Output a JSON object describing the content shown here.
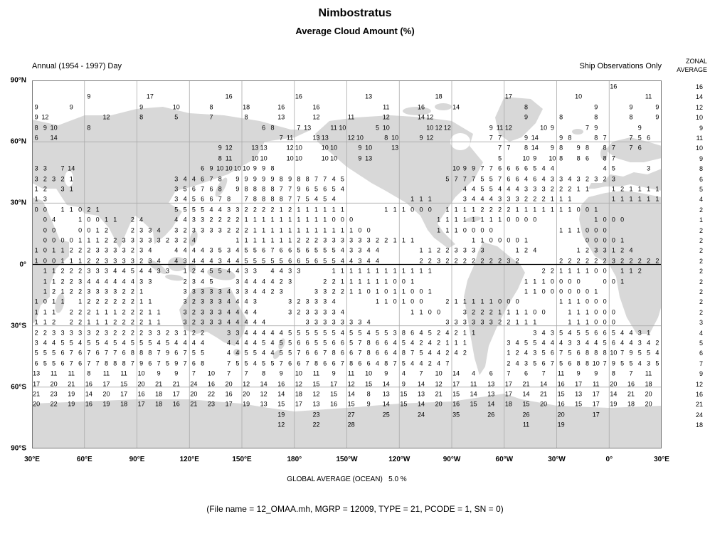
{
  "header": {
    "title": "Nimbostratus",
    "subtitle": "Average Cloud Amount (%)",
    "caption_left": "Annual (1954 - 1997) Day",
    "caption_right": "Ship Observations Only",
    "zonal_line1": "ZONAL",
    "zonal_line2": "AVERAGE"
  },
  "footer": {
    "global_average": "GLOBAL AVERAGE (OCEAN)   5.0 %",
    "file_info": "(File name = 12_OMAA.mh, MGRP = 12009, TYPE = 21, PCODE = 1, SN = 0)"
  },
  "colors": {
    "land": "#d8d8d8",
    "grid": "#aaaaaa",
    "border": "#777777",
    "equator": "#000000",
    "text": "#000000"
  },
  "chart_data": {
    "type": "heatmap",
    "title": "Nimbostratus",
    "subtitle": "Average Cloud Amount (%)",
    "units": "percent cloud amount per 5-degree cell",
    "legend_note": "Ship Observations Only",
    "period": "Annual (1954 - 1997) Day",
    "global_average_ocean": "5.0 %",
    "grid_columns": 72,
    "x_tick_labels": [
      "30°E",
      "60°E",
      "90°E",
      "120°E",
      "150°E",
      "180°",
      "150°W",
      "120°W",
      "90°W",
      "60°W",
      "30°W",
      "0°",
      "30°E"
    ],
    "y_tick_labels": [
      "90°N",
      "60°N",
      "30°N",
      "0°",
      "30°S",
      "60°S",
      "90°S"
    ],
    "zonal_average": [
      16,
      14,
      12,
      10,
      9,
      11,
      10,
      9,
      8,
      6,
      5,
      4,
      2,
      1,
      2,
      2,
      2,
      2,
      2,
      2,
      2,
      2,
      2,
      3,
      4,
      5,
      6,
      7,
      9,
      12,
      16,
      21,
      24,
      18
    ],
    "rows": [
      {
        "seg": [
          [
            66,
            "16"
          ]
        ]
      },
      {
        "seg": [
          [
            6,
            "9"
          ],
          [
            13,
            "17"
          ],
          [
            22,
            "16"
          ],
          [
            30,
            "16"
          ],
          [
            38,
            "13"
          ],
          [
            46,
            "18"
          ],
          [
            54,
            "17"
          ],
          [
            62,
            "10"
          ],
          [
            70,
            "11"
          ]
        ]
      },
      {
        "seg": [
          [
            0,
            "9"
          ],
          [
            4,
            "9"
          ],
          [
            12,
            "9"
          ],
          [
            16,
            "10"
          ],
          [
            20,
            "8"
          ],
          [
            24,
            "18"
          ],
          [
            28,
            "16"
          ],
          [
            32,
            "16"
          ],
          [
            40,
            "11"
          ],
          [
            44,
            "16"
          ],
          [
            48,
            "14"
          ],
          [
            56,
            "8"
          ],
          [
            64,
            "9"
          ],
          [
            68,
            "9"
          ],
          [
            71,
            "9"
          ]
        ]
      },
      {
        "seg": [
          [
            0,
            "9 12"
          ],
          [
            8,
            "12"
          ],
          [
            12,
            "8"
          ],
          [
            16,
            "5"
          ],
          [
            20,
            "7"
          ],
          [
            24,
            "8"
          ],
          [
            28,
            "13"
          ],
          [
            32,
            "12"
          ],
          [
            36,
            "11"
          ],
          [
            40,
            "12"
          ],
          [
            44,
            "14 12"
          ],
          [
            56,
            "9"
          ],
          [
            60,
            "8"
          ],
          [
            64,
            "8"
          ],
          [
            68,
            "8"
          ],
          [
            71,
            "9"
          ]
        ]
      },
      {
        "seg": [
          [
            0,
            "8 9 10"
          ],
          [
            6,
            "8"
          ],
          [
            26,
            "6 8"
          ],
          [
            30,
            "7 13"
          ],
          [
            34,
            "11 10"
          ],
          [
            39,
            "5 10"
          ],
          [
            45,
            "10 12 12"
          ],
          [
            52,
            "9 11 12"
          ],
          [
            58,
            "10 9"
          ],
          [
            63,
            "7 9"
          ],
          [
            69,
            "9"
          ]
        ]
      },
      {
        "seg": [
          [
            0,
            "6"
          ],
          [
            2,
            "14"
          ],
          [
            28,
            "7 11"
          ],
          [
            32,
            "13 13"
          ],
          [
            36,
            "12 10"
          ],
          [
            40,
            "8 10"
          ],
          [
            44,
            "9 12"
          ],
          [
            52,
            "7 7"
          ],
          [
            56,
            "9 14"
          ],
          [
            60,
            "9 8"
          ],
          [
            64,
            "8 7"
          ],
          [
            68,
            "7 5 6"
          ]
        ]
      },
      {
        "seg": [
          [
            21,
            "9 12"
          ],
          [
            25,
            "13 13"
          ],
          [
            29,
            "12 10"
          ],
          [
            33,
            "10 10"
          ],
          [
            37,
            "9 10"
          ],
          [
            41,
            "13"
          ],
          [
            53,
            "7 7"
          ],
          [
            56,
            "8 14"
          ],
          [
            59,
            "9 8"
          ],
          [
            62,
            "9 8"
          ],
          [
            65,
            "8 7"
          ],
          [
            68,
            "7 6"
          ]
        ]
      },
      {
        "seg": [
          [
            21,
            "8 11"
          ],
          [
            25,
            "10 10"
          ],
          [
            29,
            "10 10"
          ],
          [
            33,
            "10 10"
          ],
          [
            37,
            "9 13"
          ],
          [
            53,
            "5"
          ],
          [
            56,
            "10 9"
          ],
          [
            59,
            "10 8"
          ],
          [
            62,
            "8 6"
          ],
          [
            65,
            "8 7"
          ]
        ]
      },
      {
        "seg": [
          [
            0,
            "3 3"
          ],
          [
            3,
            "7 14"
          ],
          [
            19,
            "6 9 10 10 10 10 9 9 8"
          ],
          [
            48,
            "10 9 9 7 7 6 6 6 6 5 4 4"
          ],
          [
            65,
            "4 5"
          ],
          [
            70,
            "3"
          ]
        ]
      },
      {
        "seg": [
          [
            0,
            "3 2 3 2 1"
          ],
          [
            16,
            "3 4 4 6 7 8"
          ],
          [
            23,
            "9 9 9 9 9 8 9 8 8 7 7 4 5"
          ],
          [
            47,
            "5 7 7 7 5 5 7 6 6 4 6 4 3 3 4 3 2 3 2 3"
          ]
        ]
      },
      {
        "seg": [
          [
            0,
            "1 2"
          ],
          [
            3,
            "3 1"
          ],
          [
            16,
            "3 5 6 7 6 8"
          ],
          [
            23,
            "9 8 8 8 8 7 7 9 6 5 6 5 4"
          ],
          [
            49,
            "4 4 5 5 4 4 4 3 3 3 2 2 2 1 1"
          ],
          [
            66,
            "1 2 1 1 1 1"
          ]
        ]
      },
      {
        "seg": [
          [
            0,
            "1 3"
          ],
          [
            16,
            "3 4 5 6 6 7 8"
          ],
          [
            24,
            "7 8 8 8 8 7 7 5 4 5 4"
          ],
          [
            43,
            "1 1 1"
          ],
          [
            49,
            "3 4 4 4 3 3 3 2 2 2 1 1 1"
          ],
          [
            66,
            "1 1 1 1 1 1"
          ]
        ]
      },
      {
        "seg": [
          [
            0,
            "0 0"
          ],
          [
            3,
            "1 1 0 2 1"
          ],
          [
            16,
            "5 5 5 5 4 4 3 3 2 2 2 2 1 2 1 1 1 1 1 1"
          ],
          [
            40,
            "1 1 1 0 0 0"
          ],
          [
            47,
            "1 1 1 1 2 2 2 2 1 1 1 1 1 1 1 0 0 1"
          ]
        ]
      },
      {
        "seg": [
          [
            1,
            "0 4"
          ],
          [
            5,
            "1 0 0 1 1"
          ],
          [
            11,
            "2 4"
          ],
          [
            16,
            "4 4 3 3 2 2 2 2 1 1 1 1 1 1 1 1 1 1 0 0 0"
          ],
          [
            46,
            "1 1 1 1 1 1 1 1 0 0 0 0"
          ],
          [
            64,
            "1 0 0 0"
          ]
        ]
      },
      {
        "seg": [
          [
            1,
            "0 0"
          ],
          [
            5,
            "0 0 1 2"
          ],
          [
            11,
            "2 3 3 4"
          ],
          [
            16,
            "3 2 3 3 3 3 2 2 2 1 1 1 1 1 1 1 1 1 1 1 1 0 0"
          ],
          [
            46,
            "1 1 1 0 0 0 0"
          ],
          [
            60,
            "1 1 1 0 0 0"
          ]
        ]
      },
      {
        "seg": [
          [
            1,
            "0 0 0 0 1 1 1 2 2 3 3 3 3 3 2 3 2 4"
          ],
          [
            23,
            "1 1 1 1 1 1 1 2 2 2 3 3 3 3 3 3 2 2 1 1 1"
          ],
          [
            50,
            "1 1 0 0 0 0 1"
          ],
          [
            63,
            "0 0 0 0 1"
          ]
        ]
      },
      {
        "seg": [
          [
            0,
            "1 0 1 1 2 2 2 3 3 3 3 2 3 4"
          ],
          [
            16,
            "4 4 4 4 3 5 3 4 5 5 6 7 6 6 5 6 5 5 5 4 3 3 4 4"
          ],
          [
            44,
            "1 1 2 2 3 3 3 3"
          ],
          [
            55,
            "1 2 4"
          ],
          [
            62,
            "1 2 3 3 1 2 4"
          ]
        ]
      },
      {
        "seg": [
          [
            0,
            "1 0 0 1 1 1 2 2 3 3 3 3 2 3 4"
          ],
          [
            16,
            "4 3 4 4 4 3 4 4 5 5 5 5 5 6 6 5 6 5 5 4 4 3 4 4"
          ],
          [
            44,
            "2 2 3 2 2 2 2 2 2 2 3 2"
          ],
          [
            60,
            "2 2 2 2 2 2 3 2 2 2 2 2"
          ]
        ]
      },
      {
        "seg": [
          [
            1,
            "1 1 2 2 2 3 3 3 4 4 5 4 4 3 3"
          ],
          [
            17,
            "1 2 4 5 5 4 4 3 3"
          ],
          [
            27,
            "4 4 3 3"
          ],
          [
            34,
            "1 1 1 1 1 1 1 1 1 1 1 1"
          ],
          [
            58,
            "2 2 1 1 1 1 0 0"
          ],
          [
            67,
            "1 1 2"
          ]
        ]
      },
      {
        "seg": [
          [
            1,
            "1 1 2 2 3 4 4 4 4 4 4 3 3"
          ],
          [
            17,
            "2 3 4 5"
          ],
          [
            23,
            "3 4 4 4 4 2 3"
          ],
          [
            33,
            "2 2 1 1 1 1 1 1 0 0 1"
          ],
          [
            56,
            "1 1 1 0 0 0 0"
          ],
          [
            65,
            "0 0 1"
          ]
        ]
      },
      {
        "seg": [
          [
            1,
            "1 2 1 2 2 3 3 3 3 2 2 1"
          ],
          [
            17,
            "3 3 3 3 3 4 3 3 4 4 2 3"
          ],
          [
            32,
            "3 3 2 2 1 1 0 1 0 1 1 0 0 1"
          ],
          [
            56,
            "1 1 0 0 0 0 0 0 1"
          ]
        ]
      },
      {
        "seg": [
          [
            0,
            "1 0 1 1"
          ],
          [
            5,
            "1 2 2 2 2 2 2 1 1"
          ],
          [
            17,
            "3 2 3 3 3 4 4 4 3"
          ],
          [
            29,
            "3 2 3 3 3 4"
          ],
          [
            39,
            "1 1 0 1 0 0"
          ],
          [
            47,
            "2 1 1 1 1 1 0 0 0"
          ],
          [
            60,
            "1 1 1 0 0 0"
          ]
        ]
      },
      {
        "seg": [
          [
            0,
            "1 1 1"
          ],
          [
            4,
            "2 2 2 1 1 1 2 2 2 1 1"
          ],
          [
            17,
            "3 2 3 3 3 4 4 4 4"
          ],
          [
            29,
            "3 2 3 3 3 3 4"
          ],
          [
            43,
            "1 1 0 0"
          ],
          [
            49,
            "3 2 2 2 1 1 1 1 0 0"
          ],
          [
            61,
            "1 1 1 0 0 0"
          ]
        ]
      },
      {
        "seg": [
          [
            0,
            "1 1 2"
          ],
          [
            4,
            "2 2 1 1 1 2 2 2 2 1 1"
          ],
          [
            17,
            "3 2 3 3 3 4 4 4 4 4"
          ],
          [
            31,
            "3 3 3 3 3 3 3 4"
          ],
          [
            47,
            "3 3 3 3 3 3 2 2 1 1 1"
          ],
          [
            61,
            "1 1 1 0 0 0"
          ]
        ]
      },
      {
        "seg": [
          [
            0,
            "2 2 3 3 3 3 3 2 3 2 2 2 2 3 3 2 3 1 2 2"
          ],
          [
            22,
            "3 3 4 4 4 4 4 5 5 5 5 5 5 4 5 5 4 5 5 3 8 6 4 5 2 4 2 1 1"
          ],
          [
            57,
            "3 4 3 5 4 5 5 6 6 5 4 4 3 1"
          ]
        ]
      },
      {
        "seg": [
          [
            0,
            "3 4 4 5 5 4 5 5 4 5 4 5 5 5 4 5 4 4 4 4"
          ],
          [
            22,
            "4 4 4 4 5 4 5 5 6 6 5 5 6 6 5 7 8 6 6 4 5 4 2 4 2 1 1 1"
          ],
          [
            54,
            "3 4 5 5 4 4 4 3 3 4 4 5 6 4 4 3 4 2"
          ]
        ]
      },
      {
        "seg": [
          [
            0,
            "5 5 5 6 7 6 7 6 7 7 6 8 8 8 7 9 6 7 5 5"
          ],
          [
            22,
            "4 4 5 5 4 4 5 5 7 6 6 7 8 6 6 7 8 6 6 4 8 7 5 4 4 2 4 2"
          ],
          [
            54,
            "1 2 4 3 5 6 7 5 6 8 8 8 10 7 9 5 5 4"
          ]
        ]
      },
      {
        "seg": [
          [
            0,
            "6 5 5 6 7 6 7 7 8 8 8 7 9 6 7 5 9 7 6 8"
          ],
          [
            22,
            "7 5 5 4 5 5 7 6 6 7 8 6 6 7 8 6 6 4 8 7 5 4 4 2 4 7"
          ],
          [
            54,
            "2 4 3 5 6 7 5 6 8 8 10 7 9 5 5 4 3 5"
          ]
        ]
      },
      {
        "seg": [
          [
            0,
            "13 11 11 8 11 11 10 9 9 7 10 7 7 8 9 10 11 9 11 10 9 4 7 10 14 4 6 7 6 7 11 9 9 8 7 11",
            2
          ]
        ]
      },
      {
        "seg": [
          [
            0,
            "17 20 21 16 17 15 20 21 21 24 16 20 12 14 16 12 15 17 12 15 14 9 14 12 17 11 13 17 21 14 16 17 11 20 16 18",
            2
          ]
        ]
      },
      {
        "seg": [
          [
            0,
            "21 23 19 14 20 17 16 18 17 20 22 16 20 12 14 18 12 15 14 8 13 15 13 21 15 14 13 17 14 21 15 13 17 14 21 20",
            2
          ]
        ]
      },
      {
        "seg": [
          [
            0,
            "20 22 19 16 19 18 17 18 16 21 23 17 19 13 15 17 13 16 15 9 14 15 14 20 16 15 14 18 15 20 16 15 17 19 18 20",
            2
          ]
        ]
      },
      {
        "seg": [
          [
            28,
            "19"
          ],
          [
            32,
            "23"
          ],
          [
            36,
            "27"
          ],
          [
            40,
            "25"
          ],
          [
            44,
            "24"
          ],
          [
            48,
            "35"
          ],
          [
            52,
            "26"
          ],
          [
            56,
            "26"
          ],
          [
            60,
            "20"
          ],
          [
            64,
            "17"
          ]
        ]
      },
      {
        "seg": [
          [
            28,
            "12"
          ],
          [
            32,
            "22"
          ],
          [
            36,
            "28"
          ],
          [
            56,
            "11"
          ],
          [
            60,
            "19"
          ]
        ]
      }
    ]
  }
}
